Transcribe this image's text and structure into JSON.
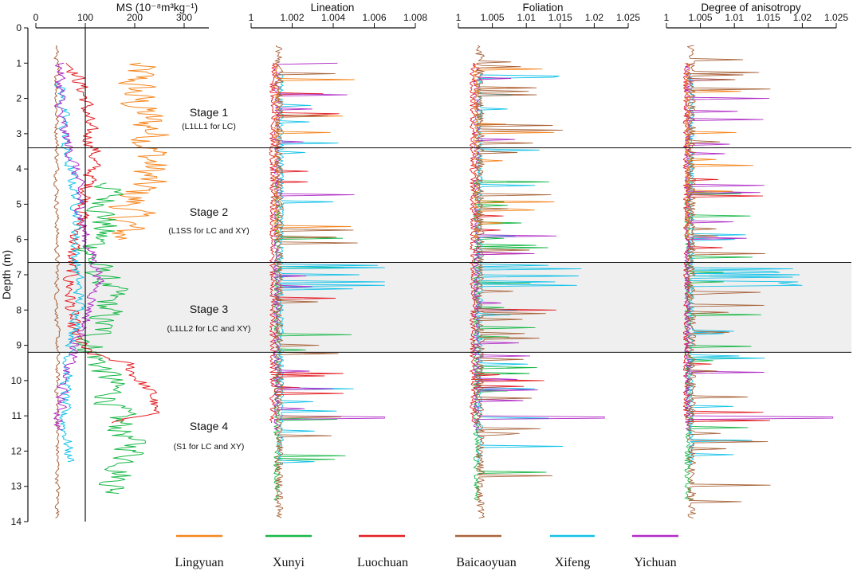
{
  "colors": {
    "Lingyuan": "#f5861f",
    "Xunyi": "#19b848",
    "Luochuan": "#e31e24",
    "Baicaoyuan": "#a9643b",
    "Xifeng": "#12c2e9",
    "Yichuan": "#b02cc6",
    "shade": "#efefef"
  },
  "legend": [
    "Lingyuan",
    "Xunyi",
    "Luochuan",
    "Baicaoyuan",
    "Xifeng",
    "Yichuan"
  ],
  "stages": [
    {
      "title": "Stage 1",
      "subtitle": "(L1LL1 for LC)",
      "top": 0,
      "bottom": 3.4,
      "shaded": false
    },
    {
      "title": "Stage 2",
      "subtitle": "(L1SS for LC and XY)",
      "top": 3.4,
      "bottom": 6.65,
      "shaded": false
    },
    {
      "title": "Stage 3",
      "subtitle": "(L1LL2 for LC and XY)",
      "top": 6.65,
      "bottom": 9.2,
      "shaded": true
    },
    {
      "title": "Stage 4",
      "subtitle": "(S1 for LC and XY)",
      "top": 9.2,
      "bottom": 14,
      "shaded": false
    }
  ],
  "chart_data": {
    "type": "line",
    "y_axis": {
      "label": "Depth  (m)",
      "range": [
        0,
        14
      ],
      "ticks": [
        "0",
        "1",
        "2",
        "3",
        "4",
        "5",
        "6",
        "7",
        "8",
        "9",
        "10",
        "11",
        "12",
        "13",
        "14"
      ]
    },
    "panels": [
      {
        "key": "ms",
        "title": "MS (10⁻⁸m³kg⁻¹)",
        "xlim": [
          0,
          350
        ],
        "ticks": [
          "0",
          "100",
          "200",
          "300"
        ],
        "tick_values": [
          0,
          100,
          200,
          300
        ],
        "reference_line": 100,
        "series": [
          {
            "name": "Lingyuan",
            "depth_range": [
              1,
              6
            ],
            "profile": [
              [
                1,
                200
              ],
              [
                2,
                200
              ],
              [
                3,
                240
              ],
              [
                4,
                230
              ],
              [
                5,
                190
              ],
              [
                6,
                175
              ]
            ],
            "noise": 40
          },
          {
            "name": "Xunyi",
            "depth_range": [
              4.4,
              13.2
            ],
            "profile": [
              [
                4.4,
                150
              ],
              [
                5.5,
                140
              ],
              [
                6.5,
                110
              ],
              [
                7.5,
                150
              ],
              [
                8.5,
                130
              ],
              [
                9,
                110
              ],
              [
                10,
                150
              ],
              [
                11,
                160
              ],
              [
                12,
                200
              ],
              [
                13,
                160
              ]
            ],
            "noise": 30
          },
          {
            "name": "Luochuan",
            "depth_range": [
              1,
              11.2
            ],
            "profile": [
              [
                1,
                75
              ],
              [
                2,
                100
              ],
              [
                3,
                105
              ],
              [
                3.5,
                120
              ],
              [
                5,
                100
              ],
              [
                6.5,
                70
              ],
              [
                7.5,
                70
              ],
              [
                8.5,
                70
              ],
              [
                9.2,
                100
              ],
              [
                9.5,
                180
              ],
              [
                10.5,
                240
              ],
              [
                11,
                230
              ],
              [
                11.2,
                150
              ]
            ],
            "noise": 14
          },
          {
            "name": "Baicaoyuan",
            "depth_range": [
              0.5,
              13.9
            ],
            "profile": [
              [
                0.5,
                42
              ],
              [
                14,
                44
              ]
            ],
            "noise": 4
          },
          {
            "name": "Xifeng",
            "depth_range": [
              1.5,
              12.3
            ],
            "profile": [
              [
                1.5,
                50
              ],
              [
                3.5,
                60
              ],
              [
                5,
                85
              ],
              [
                6.5,
                80
              ],
              [
                8,
                90
              ],
              [
                9.5,
                65
              ],
              [
                11,
                55
              ],
              [
                12.3,
                70
              ]
            ],
            "noise": 10
          },
          {
            "name": "Yichuan",
            "depth_range": [
              1,
              11.4
            ],
            "profile": [
              [
                1,
                50
              ],
              [
                2.5,
                48
              ],
              [
                4,
                80
              ],
              [
                5,
                90
              ],
              [
                6,
                100
              ],
              [
                7,
                130
              ],
              [
                8,
                110
              ],
              [
                9,
                80
              ],
              [
                10,
                55
              ],
              [
                11.4,
                45
              ]
            ],
            "noise": 10
          }
        ]
      },
      {
        "key": "lineation",
        "title": "Lineation",
        "xlim": [
          1,
          1.008
        ],
        "ticks": [
          "1",
          "1.002",
          "1.004",
          "1.006",
          "1.008"
        ],
        "tick_values": [
          1,
          1.002,
          1.004,
          1.006,
          1.008
        ],
        "spike_max": 1.0065
      },
      {
        "key": "foliation",
        "title": "Foliation",
        "xlim": [
          1,
          1.025
        ],
        "ticks": [
          "1",
          "1.005",
          "1.01",
          "1.015",
          "1.02",
          "1.025"
        ],
        "tick_values": [
          1,
          1.005,
          1.01,
          1.015,
          1.02,
          1.025
        ],
        "spike_max": 1.0215
      },
      {
        "key": "anisotropy",
        "title": "Degree of anisotropy",
        "xlim": [
          1,
          1.025
        ],
        "ticks": [
          "1",
          "1.005",
          "1.01",
          "1.015",
          "1.02",
          "1.025"
        ],
        "tick_values": [
          1,
          1.005,
          1.01,
          1.015,
          1.02,
          1.025
        ],
        "spike_max": 1.0245
      }
    ]
  }
}
